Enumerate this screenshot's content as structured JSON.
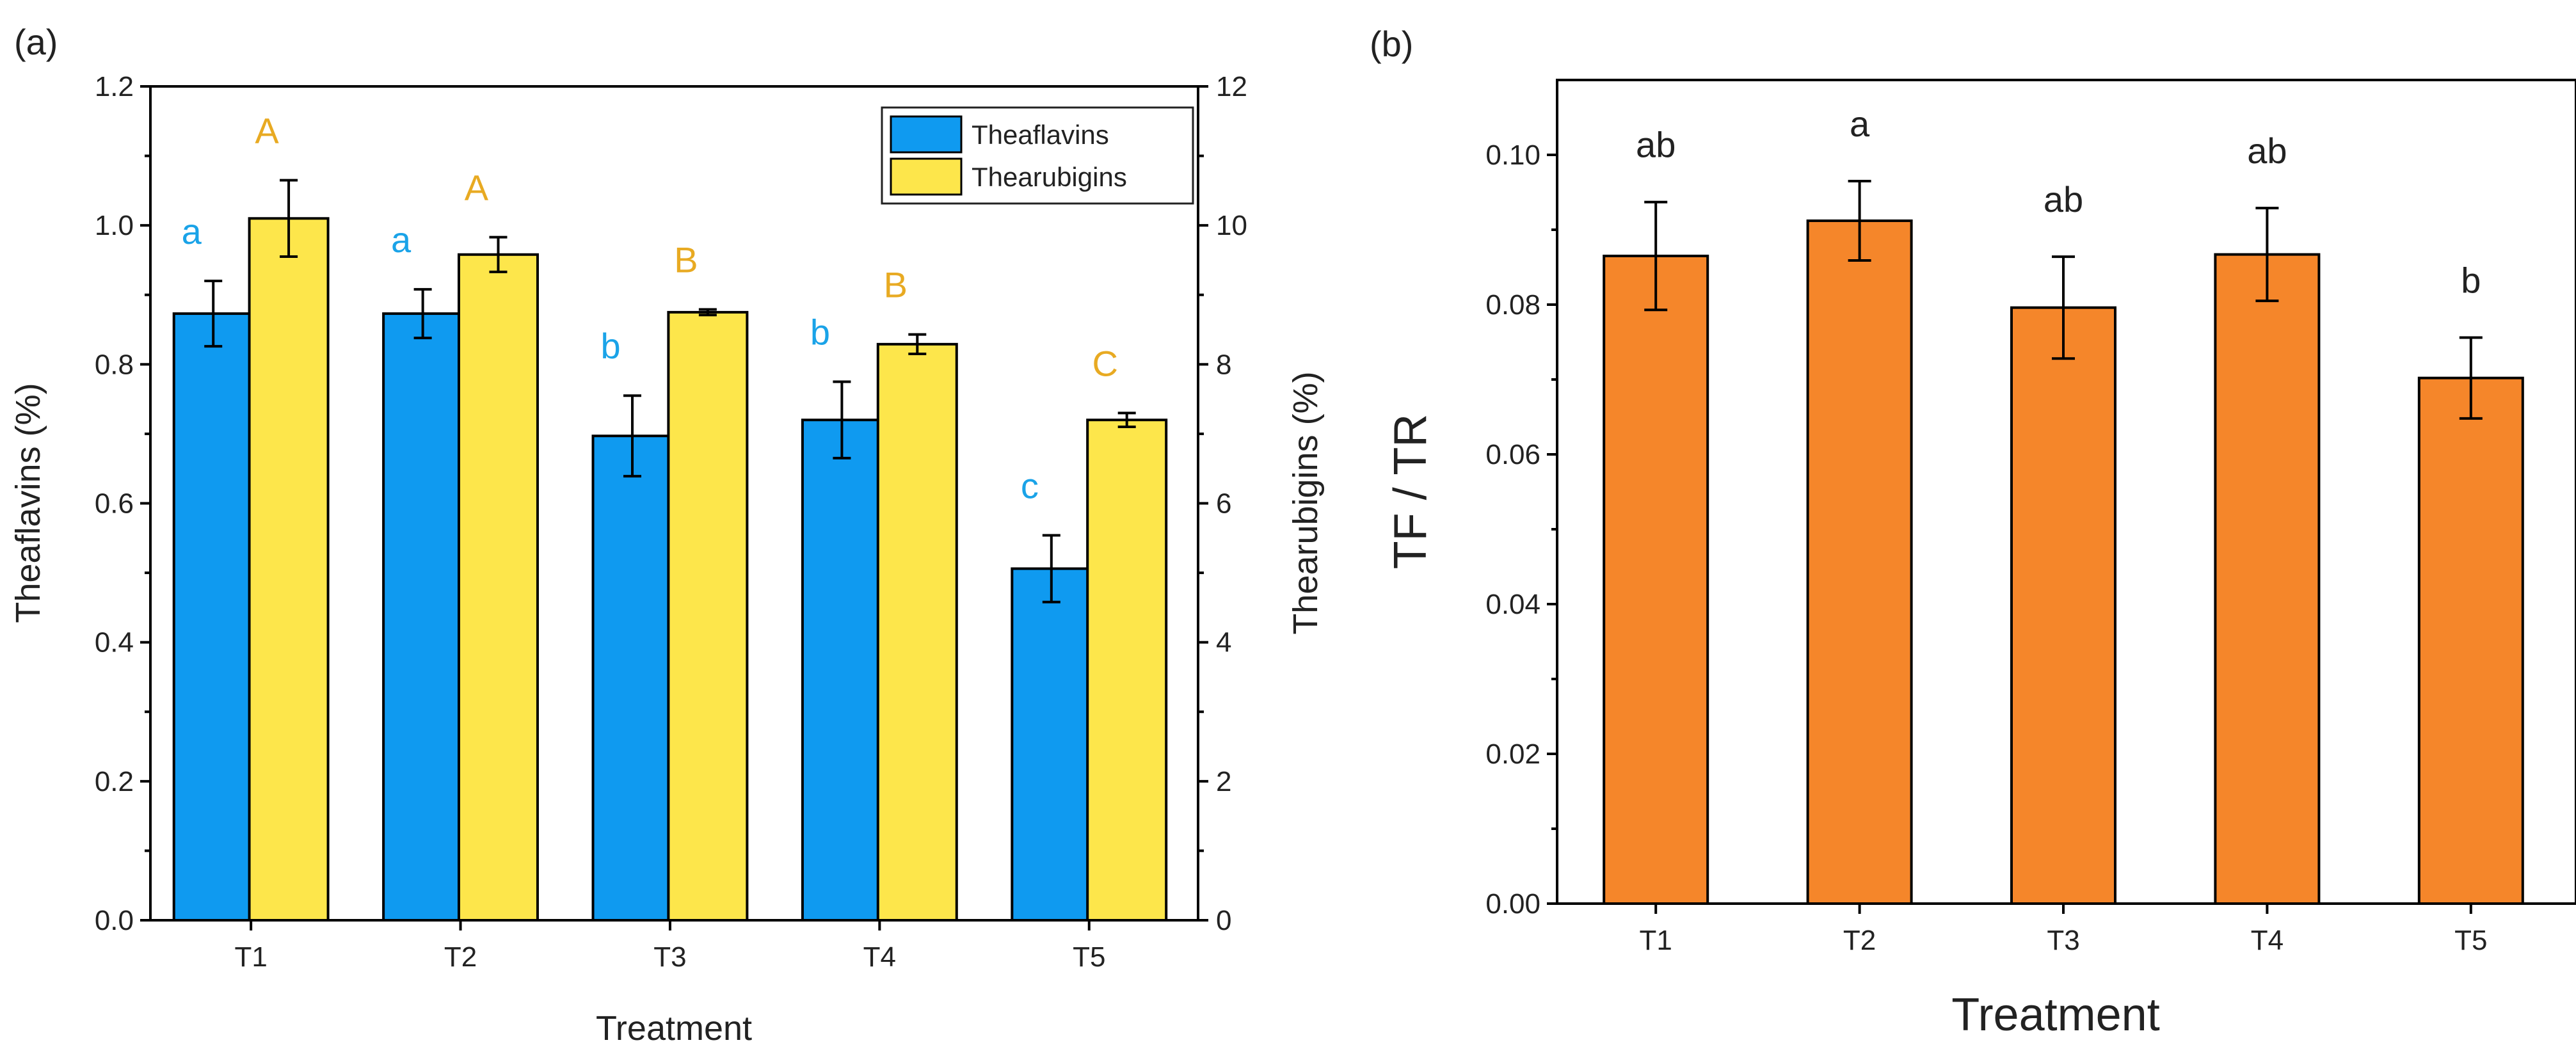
{
  "chart_data": [
    {
      "panel": "(a)",
      "type": "bar",
      "categories": [
        "T1",
        "T2",
        "T3",
        "T4",
        "T5"
      ],
      "xlabel": "Treatment",
      "ylabel_left": "Theaflavins (%)",
      "ylabel_right": "Thearubigins (%)",
      "ylim_left": [
        0,
        1.2
      ],
      "ylim_right": [
        0,
        12
      ],
      "yticks_left": [
        "0.0",
        "0.2",
        "0.4",
        "0.6",
        "0.8",
        "1.0",
        "1.2"
      ],
      "yticks_right": [
        "0",
        "2",
        "4",
        "6",
        "8",
        "10",
        "12"
      ],
      "legend_position": "top-right",
      "series": [
        {
          "name": "Theaflavins",
          "axis": "left",
          "color": "#0f9af0",
          "label_color": "#1aa3e8",
          "values": [
            0.873,
            0.873,
            0.697,
            0.72,
            0.506
          ],
          "errors": [
            0.047,
            0.035,
            0.058,
            0.055,
            0.048
          ],
          "letters": [
            "a",
            "a",
            "b",
            "b",
            "c"
          ]
        },
        {
          "name": "Thearubigins",
          "axis": "right",
          "color": "#fde64b",
          "label_color": "#e8aa22",
          "values": [
            10.1,
            9.58,
            8.75,
            8.29,
            7.2
          ],
          "errors": [
            0.55,
            0.25,
            0.04,
            0.14,
            0.1
          ],
          "letters": [
            "A",
            "A",
            "B",
            "B",
            "C"
          ]
        }
      ]
    },
    {
      "panel": "(b)",
      "type": "bar",
      "categories": [
        "T1",
        "T2",
        "T3",
        "T4",
        "T5"
      ],
      "xlabel": "Treatment",
      "ylabel": "TF / TR",
      "ylim": [
        0,
        0.11
      ],
      "yticks": [
        "0.00",
        "0.02",
        "0.04",
        "0.06",
        "0.08",
        "0.10"
      ],
      "series": [
        {
          "name": "TF / TR",
          "color": "#f5862a",
          "label_color": "#222222",
          "values": [
            0.0865,
            0.0912,
            0.0796,
            0.0867,
            0.0702
          ],
          "errors": [
            0.0072,
            0.0053,
            0.0068,
            0.0062,
            0.0054
          ],
          "letters": [
            "ab",
            "a",
            "ab",
            "ab",
            "b"
          ]
        }
      ]
    }
  ]
}
